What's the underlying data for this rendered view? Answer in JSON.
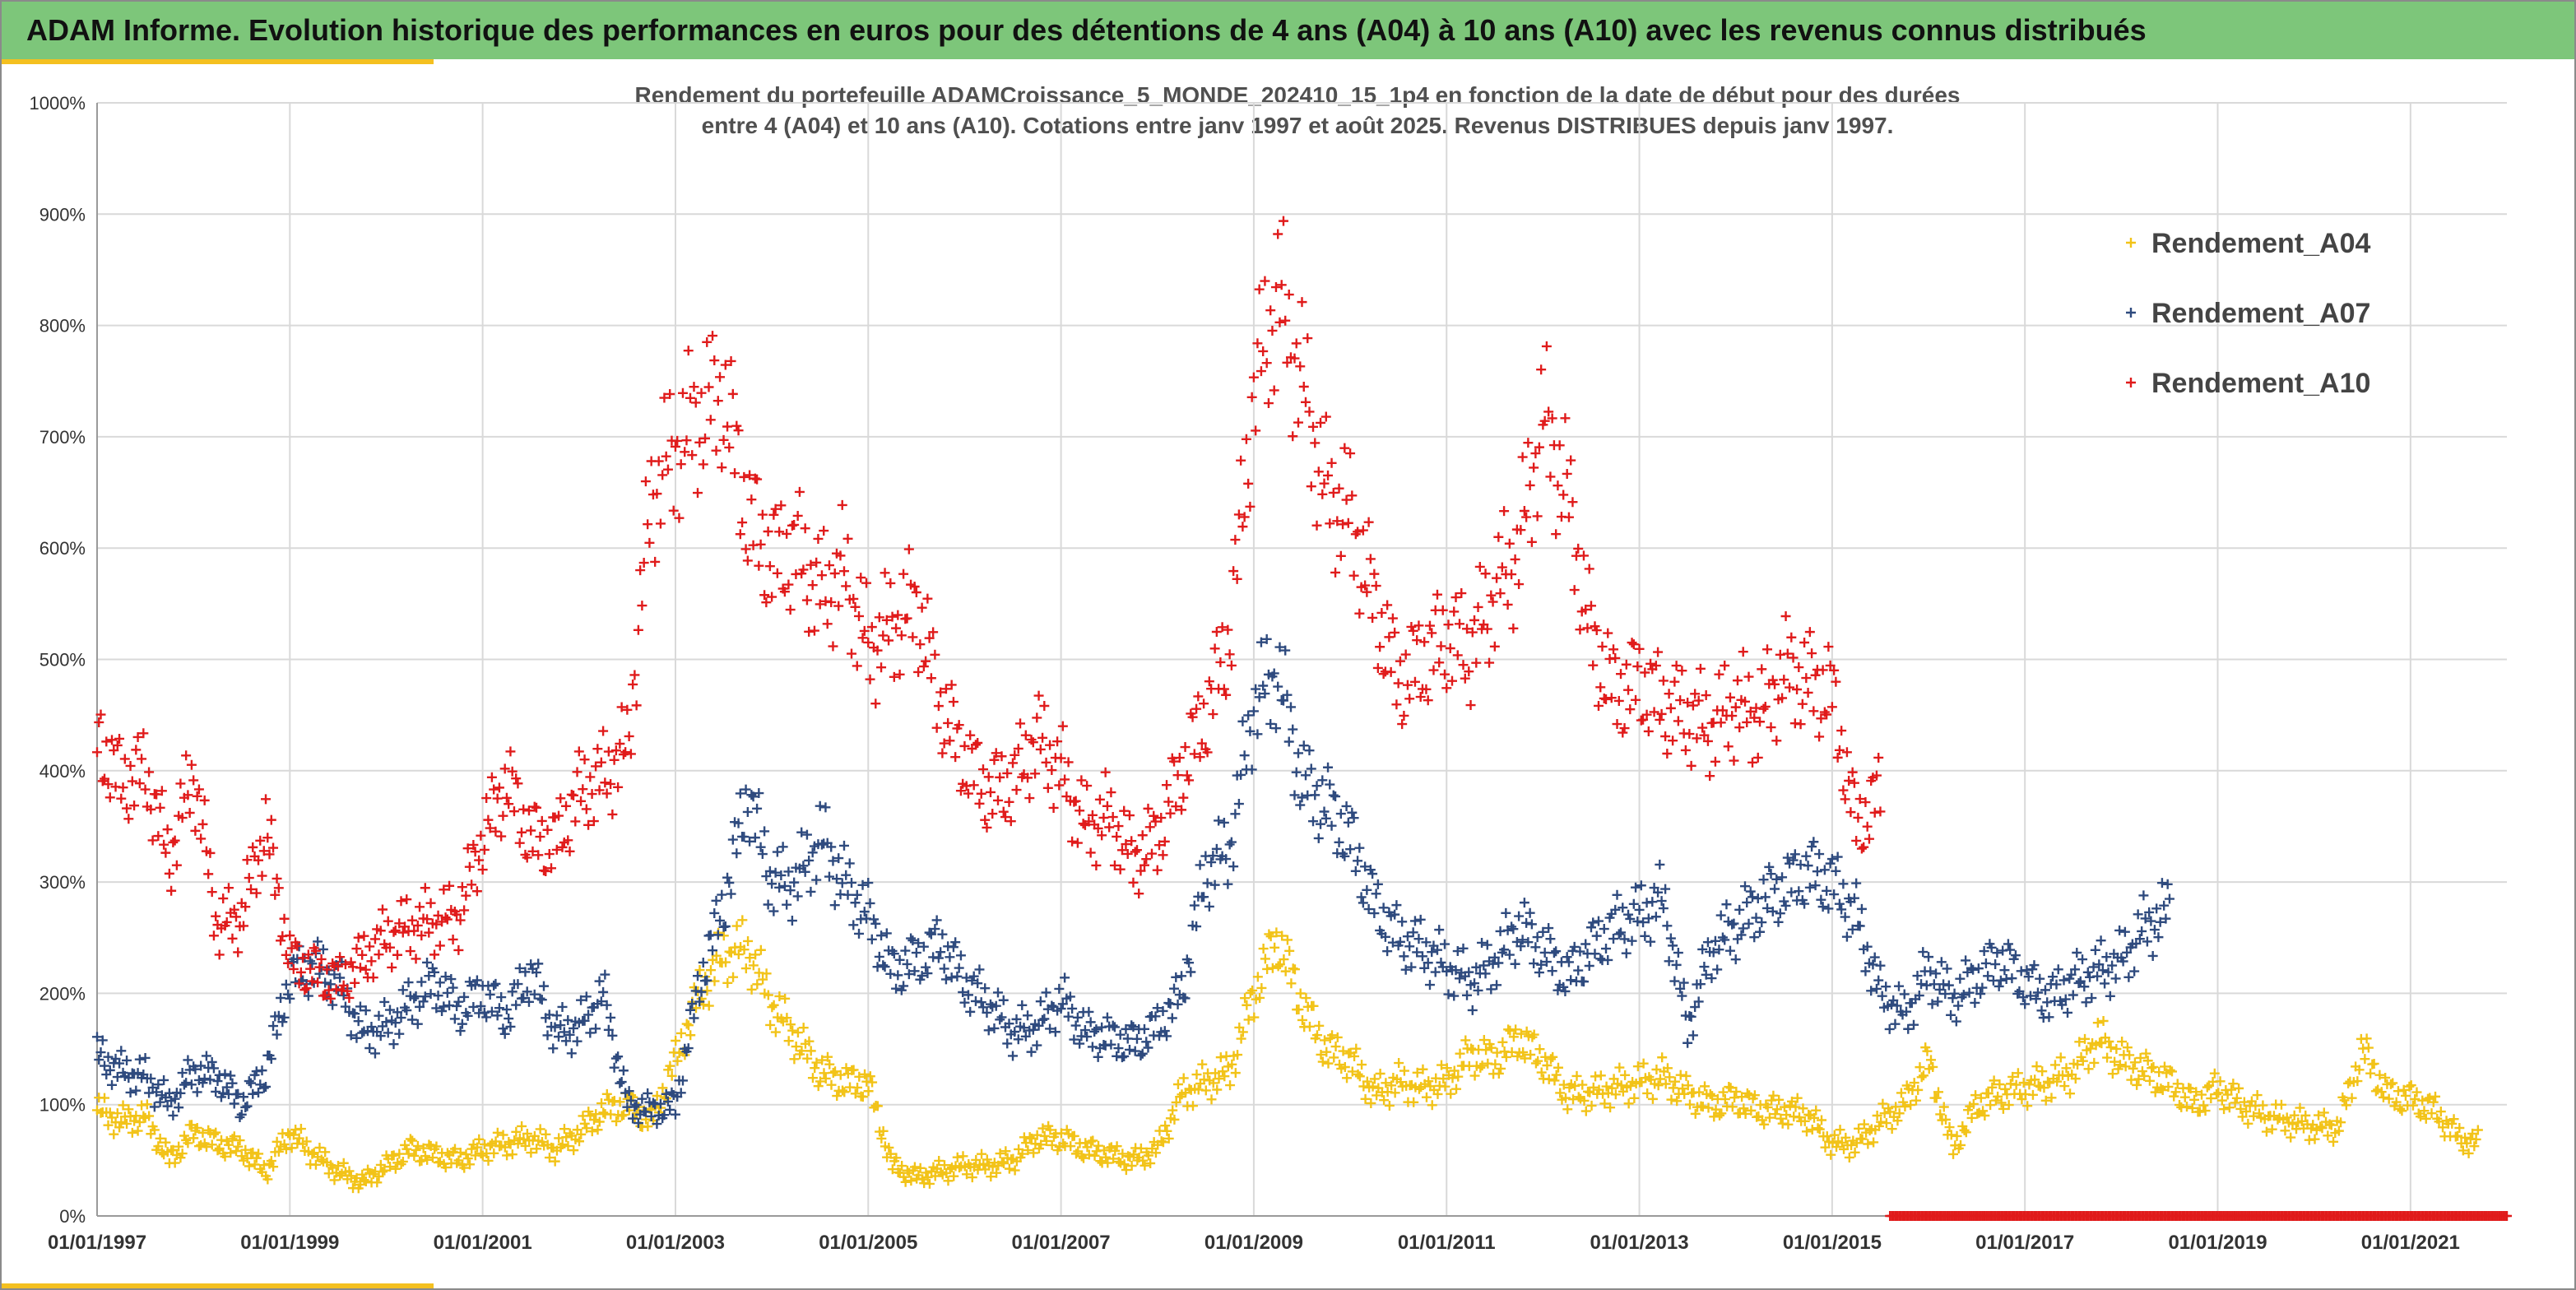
{
  "report": {
    "banner_title": "ADAM Informe. Evolution historique des performances en euros pour des détentions de 4 ans (A04) à 10 ans (A10) avec les revenus connus distribués"
  },
  "colors": {
    "banner": "#7dc67a",
    "accent": "#f4c020",
    "A04": "#f2c318",
    "A07": "#2e4a7e",
    "A10": "#e01b1b",
    "grid": "#d9d9d9"
  },
  "chart_data": {
    "type": "scatter",
    "title_lines": [
      "Rendement du portefeuille ADAMCroissance_5_MONDE_202410_15_1p4  en fonction de la date de début pour des durées",
      "entre 4 (A04) et 10 ans (A10). Cotations entre janv 1997 et août 2025. Revenus DISTRIBUES depuis janv 1997."
    ],
    "xlabel": "",
    "ylabel": "",
    "x_unit": "year",
    "xlim": [
      1997.0,
      2022.0
    ],
    "ylim": [
      0,
      1000
    ],
    "y_ticks": [
      0,
      100,
      200,
      300,
      400,
      500,
      600,
      700,
      800,
      900,
      1000
    ],
    "y_tick_labels": [
      "0%",
      "100%",
      "200%",
      "300%",
      "400%",
      "500%",
      "600%",
      "700%",
      "800%",
      "900%",
      "1000%"
    ],
    "x_ticks": [
      1997,
      1999,
      2001,
      2003,
      2005,
      2007,
      2009,
      2011,
      2013,
      2015,
      2017,
      2019,
      2021
    ],
    "x_tick_labels": [
      "01/01/1997",
      "01/01/1999",
      "01/01/2001",
      "01/01/2003",
      "01/01/2005",
      "01/01/2007",
      "01/01/2009",
      "01/01/2011",
      "01/01/2013",
      "01/01/2015",
      "01/01/2017",
      "01/01/2019",
      "01/01/2021"
    ],
    "grid": true,
    "legend": "right",
    "marker": "plus",
    "series": [
      {
        "name": "Rendement_A04",
        "color": "#f2c318",
        "x": [
          1997.0,
          1997.25,
          1997.5,
          1997.75,
          1998.0,
          1998.25,
          1998.5,
          1998.75,
          1999.0,
          1999.25,
          1999.5,
          1999.75,
          2000.0,
          2000.25,
          2000.5,
          2000.75,
          2001.0,
          2001.25,
          2001.5,
          2001.75,
          2002.0,
          2002.25,
          2002.5,
          2002.75,
          2003.0,
          2003.25,
          2003.5,
          2003.75,
          2004.0,
          2004.25,
          2004.5,
          2004.75,
          2005.0,
          2005.25,
          2005.5,
          2005.75,
          2006.0,
          2006.25,
          2006.5,
          2006.75,
          2007.0,
          2007.25,
          2007.5,
          2007.75,
          2008.0,
          2008.25,
          2008.5,
          2008.75,
          2009.0,
          2009.25,
          2009.5,
          2009.75,
          2010.0,
          2010.25,
          2010.5,
          2010.75,
          2011.0,
          2011.25,
          2011.5,
          2011.75,
          2012.0,
          2012.25,
          2012.5,
          2012.75,
          2013.0,
          2013.25,
          2013.5,
          2013.75,
          2014.0,
          2014.25,
          2014.5,
          2014.75,
          2015.0,
          2015.25,
          2015.5,
          2015.75,
          2016.0,
          2016.25,
          2016.5,
          2016.75,
          2017.0,
          2017.25,
          2017.5,
          2017.75,
          2018.0,
          2018.25,
          2018.5,
          2018.75,
          2019.0,
          2019.25,
          2019.5,
          2019.75,
          2020.0,
          2020.25,
          2020.5,
          2020.75,
          2021.0,
          2021.25,
          2021.5,
          2021.7
        ],
        "y": [
          95,
          85,
          90,
          50,
          75,
          65,
          60,
          40,
          75,
          55,
          40,
          30,
          45,
          60,
          55,
          50,
          60,
          65,
          70,
          60,
          75,
          95,
          100,
          85,
          140,
          200,
          235,
          240,
          190,
          160,
          130,
          120,
          120,
          45,
          35,
          40,
          45,
          45,
          50,
          70,
          70,
          60,
          55,
          50,
          60,
          110,
          120,
          130,
          200,
          250,
          190,
          150,
          140,
          110,
          120,
          115,
          120,
          145,
          140,
          160,
          140,
          110,
          110,
          115,
          120,
          125,
          110,
          100,
          105,
          95,
          95,
          90,
          65,
          65,
          85,
          100,
          140,
          60,
          100,
          110,
          115,
          120,
          130,
          160,
          140,
          130,
          120,
          100,
          115,
          100,
          90,
          85,
          80,
          80,
          150,
          110,
          105,
          95,
          70,
          65
        ]
      },
      {
        "name": "Rendement_A07",
        "color": "#2e4a7e",
        "x": [
          1997.0,
          1997.25,
          1997.5,
          1997.75,
          1998.0,
          1998.25,
          1998.5,
          1998.75,
          1999.0,
          1999.25,
          1999.5,
          1999.75,
          2000.0,
          2000.25,
          2000.5,
          2000.75,
          2001.0,
          2001.25,
          2001.5,
          2001.75,
          2002.0,
          2002.25,
          2002.5,
          2002.75,
          2003.0,
          2003.25,
          2003.5,
          2003.75,
          2004.0,
          2004.25,
          2004.5,
          2004.75,
          2005.0,
          2005.25,
          2005.5,
          2005.75,
          2006.0,
          2006.25,
          2006.5,
          2006.75,
          2007.0,
          2007.25,
          2007.5,
          2007.75,
          2008.0,
          2008.25,
          2008.5,
          2008.75,
          2009.0,
          2009.25,
          2009.5,
          2009.75,
          2010.0,
          2010.25,
          2010.5,
          2010.75,
          2011.0,
          2011.25,
          2011.5,
          2011.75,
          2012.0,
          2012.25,
          2012.5,
          2012.75,
          2013.0,
          2013.25,
          2013.5,
          2013.75,
          2014.0,
          2014.25,
          2014.5,
          2014.75,
          2015.0,
          2015.25,
          2015.5,
          2015.75,
          2016.0,
          2016.25,
          2016.5,
          2016.75,
          2017.0,
          2017.25,
          2017.5,
          2017.75,
          2018.0,
          2018.25,
          2018.5
        ],
        "y": [
          145,
          130,
          125,
          100,
          130,
          125,
          100,
          130,
          215,
          225,
          210,
          165,
          170,
          190,
          210,
          185,
          200,
          180,
          220,
          165,
          170,
          200,
          100,
          95,
          100,
          210,
          280,
          380,
          300,
          300,
          340,
          300,
          270,
          220,
          230,
          245,
          210,
          190,
          165,
          170,
          195,
          165,
          160,
          155,
          170,
          200,
          310,
          330,
          460,
          490,
          390,
          370,
          340,
          280,
          250,
          240,
          225,
          210,
          230,
          260,
          240,
          215,
          240,
          260,
          270,
          285,
          170,
          240,
          260,
          280,
          295,
          310,
          300,
          270,
          200,
          180,
          220,
          195,
          215,
          230,
          210,
          195,
          210,
          220,
          230,
          260,
          275
        ]
      },
      {
        "name": "Rendement_A10",
        "color": "#e01b1b",
        "x": [
          1997.0,
          1997.25,
          1997.5,
          1997.75,
          1998.0,
          1998.25,
          1998.5,
          1998.75,
          1999.0,
          1999.25,
          1999.5,
          1999.75,
          2000.0,
          2000.25,
          2000.5,
          2000.75,
          2001.0,
          2001.25,
          2001.5,
          2001.75,
          2002.0,
          2002.25,
          2002.5,
          2002.75,
          2003.0,
          2003.25,
          2003.5,
          2003.75,
          2004.0,
          2004.25,
          2004.5,
          2004.75,
          2005.0,
          2005.25,
          2005.5,
          2005.75,
          2006.0,
          2006.25,
          2006.5,
          2006.75,
          2007.0,
          2007.25,
          2007.5,
          2007.75,
          2008.0,
          2008.25,
          2008.5,
          2008.75,
          2009.0,
          2009.25,
          2009.5,
          2009.75,
          2010.0,
          2010.25,
          2010.5,
          2010.75,
          2011.0,
          2011.25,
          2011.5,
          2011.75,
          2012.0,
          2012.25,
          2012.5,
          2012.75,
          2013.0,
          2013.25,
          2013.5,
          2013.75,
          2014.0,
          2014.25,
          2014.5,
          2014.75,
          2015.0,
          2015.25,
          2015.5
        ],
        "y": [
          430,
          390,
          400,
          320,
          400,
          260,
          270,
          350,
          230,
          220,
          210,
          230,
          250,
          260,
          265,
          270,
          340,
          390,
          340,
          335,
          380,
          395,
          420,
          650,
          690,
          720,
          740,
          630,
          590,
          600,
          560,
          580,
          510,
          530,
          550,
          460,
          410,
          380,
          390,
          430,
          400,
          350,
          360,
          320,
          340,
          400,
          450,
          520,
          740,
          830,
          750,
          650,
          630,
          550,
          480,
          500,
          520,
          510,
          560,
          600,
          720,
          650,
          520,
          470,
          480,
          460,
          450,
          440,
          460,
          450,
          490,
          480,
          470,
          350,
          380
        ]
      }
    ],
    "distributions_marker": {
      "color": "#e01b1b",
      "x_start": 2015.6,
      "x_end": 2022.0,
      "y": 0
    }
  }
}
